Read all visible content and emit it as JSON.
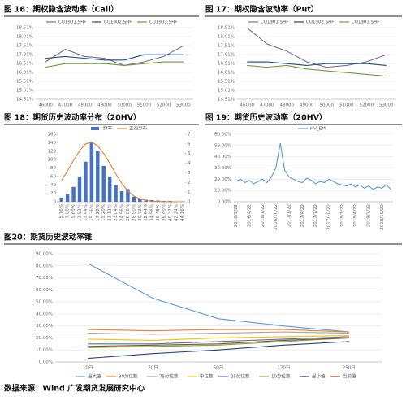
{
  "chart_data": [
    {
      "type": "line",
      "title": "图 16：期权隐含波动率（Call）",
      "categories": [
        "46000",
        "47000",
        "48000",
        "49000",
        "50000",
        "51000",
        "52000",
        "53000"
      ],
      "series": [
        {
          "name": "CU1901.SHF",
          "color": "#8064a2",
          "values": [
            16.6,
            17.3,
            16.9,
            16.8,
            16.4,
            16.6,
            16.9,
            17.5
          ]
        },
        {
          "name": "CU1902.SHF",
          "color": "#1f4e79",
          "values": [
            16.8,
            16.9,
            16.8,
            16.7,
            16.7,
            17.0,
            17.0,
            17.0
          ]
        },
        {
          "name": "CU1903.SHF",
          "color": "#6e9a3c",
          "values": [
            16.3,
            16.5,
            16.5,
            16.5,
            16.4,
            16.5,
            16.6,
            16.6
          ]
        }
      ],
      "ylim": [
        14.51,
        18.51
      ],
      "yticks": [
        {
          "value": 14.51,
          "label": "14.51%"
        },
        {
          "value": 15.01,
          "label": "15.01%"
        },
        {
          "value": 15.51,
          "label": "15.51%"
        },
        {
          "value": 16.01,
          "label": "16.01%"
        },
        {
          "value": 16.51,
          "label": "16.51%"
        },
        {
          "value": 17.01,
          "label": "17.01%"
        },
        {
          "value": 17.51,
          "label": "17.51%"
        },
        {
          "value": 18.01,
          "label": "18.01%"
        },
        {
          "value": 18.51,
          "label": "18.51%"
        }
      ],
      "grid": true,
      "legend": "top"
    },
    {
      "type": "line",
      "title": "图 17：期权隐含波动率（Put）",
      "categories": [
        "46000",
        "47000",
        "48000",
        "49000",
        "50000",
        "51000",
        "52000",
        "53000"
      ],
      "series": [
        {
          "name": "CU1901.SHF",
          "color": "#8064a2",
          "values": [
            18.5,
            17.6,
            17.2,
            16.6,
            16.3,
            16.4,
            16.6,
            17.0
          ]
        },
        {
          "name": "CU1902.SHF",
          "color": "#1f4e79",
          "values": [
            16.6,
            16.6,
            16.5,
            16.4,
            16.5,
            16.5,
            16.5,
            16.4
          ]
        },
        {
          "name": "CU1903.SHF",
          "color": "#6e9a3c",
          "values": [
            16.4,
            16.3,
            16.4,
            16.2,
            16.1,
            16.0,
            15.9,
            15.8
          ]
        }
      ],
      "ylim": [
        14.51,
        18.51
      ],
      "yticks": [
        {
          "value": 14.51,
          "label": "14.51%"
        },
        {
          "value": 15.01,
          "label": "15.01%"
        },
        {
          "value": 15.51,
          "label": "15.51%"
        },
        {
          "value": 16.01,
          "label": "16.01%"
        },
        {
          "value": 16.51,
          "label": "16.51%"
        },
        {
          "value": 17.01,
          "label": "17.01%"
        },
        {
          "value": 17.51,
          "label": "17.51%"
        },
        {
          "value": 18.01,
          "label": "18.01%"
        },
        {
          "value": 18.51,
          "label": "18.51%"
        }
      ],
      "grid": true,
      "legend": "top"
    },
    {
      "type": "bar",
      "title": "图 18：期货历史波动率分布（20HV）",
      "categories": [
        "5.76%",
        "7.68%",
        "9.60%",
        "11.52%",
        "13.44%",
        "15.36%",
        "17.28%",
        "19.20%",
        "21.12%",
        "23.04%",
        "24.96%",
        "26.88%",
        "28.80%",
        "30.72%",
        "32.64%",
        "34.56%",
        "36.48%",
        "38.40%",
        "40.32%",
        "42.24%",
        "44.16%"
      ],
      "series": [
        {
          "name": "频率",
          "color": "#4472c4",
          "values": [
            10,
            18,
            35,
            60,
            95,
            140,
            120,
            85,
            60,
            40,
            25,
            30,
            12,
            8,
            5,
            4,
            3,
            2,
            2,
            1,
            1
          ]
        },
        {
          "name": "正态分布",
          "color": "#ed7d31",
          "type": "line",
          "axis": "y2",
          "values": [
            2.2,
            3.2,
            4.3,
            5.3,
            6.0,
            6.2,
            5.8,
            5.0,
            4.0,
            2.9,
            1.9,
            1.1,
            0.6,
            0.3,
            0.15,
            0.07,
            0.03,
            0.01,
            0,
            0,
            0
          ]
        }
      ],
      "ylim": [
        0,
        160
      ],
      "yticks": [
        0,
        20,
        40,
        60,
        80,
        100,
        120,
        140,
        160
      ],
      "y2lim": [
        0,
        7
      ],
      "y2ticks": [
        0,
        1,
        2,
        3,
        4,
        5,
        6,
        7
      ],
      "grid": false,
      "legend": "top"
    },
    {
      "type": "line",
      "title": "图 19：期货历史波动率（20HV）",
      "categories": [
        "2016/1/22",
        null,
        null,
        "2016/4/22",
        null,
        null,
        "2016/7/22",
        null,
        null,
        "2016/10/22",
        null,
        null,
        "2017/1/22",
        null,
        null,
        "2017/4/22",
        null,
        null,
        "2017/7/22",
        null,
        null,
        "2017/10/22",
        null,
        null,
        "2018/1/22",
        null,
        null,
        "2018/4/22",
        null,
        null,
        "2018/7/22",
        null,
        null,
        "2018/10/22",
        null,
        null
      ],
      "series": [
        {
          "name": "HV_EM",
          "color": "#5b9bd5",
          "values": [
            18,
            20,
            17,
            19,
            16,
            18,
            20,
            17,
            22,
            30,
            52,
            28,
            22,
            20,
            18,
            17,
            21,
            19,
            16,
            18,
            17,
            20,
            18,
            16,
            15,
            14,
            16,
            13,
            15,
            12,
            14,
            11,
            13,
            12,
            15,
            11
          ]
        }
      ],
      "ylim": [
        0,
        60
      ],
      "yticks": [
        {
          "value": 0,
          "label": "0.00%"
        },
        {
          "value": 10,
          "label": "10.00%"
        },
        {
          "value": 20,
          "label": "20.00%"
        },
        {
          "value": 30,
          "label": "30.00%"
        },
        {
          "value": 40,
          "label": "40.00%"
        },
        {
          "value": 50,
          "label": "50.00%"
        },
        {
          "value": 60,
          "label": "60.00%"
        }
      ],
      "grid": true,
      "legend": "top"
    },
    {
      "type": "line",
      "title": "图20：期货历史波动率锥",
      "categories": [
        "10日",
        "20日",
        "60日",
        "120日",
        "250日"
      ],
      "series": [
        {
          "name": "最大值",
          "color": "#5b9bd5",
          "values": [
            82,
            53,
            36,
            30,
            25
          ]
        },
        {
          "name": "90分位数",
          "color": "#ed7d31",
          "values": [
            27,
            26,
            27,
            27,
            25
          ]
        },
        {
          "name": "75分位数",
          "color": "#a5a5a5",
          "values": [
            24,
            23,
            24,
            25,
            24
          ]
        },
        {
          "name": "中位数",
          "color": "#ffc000",
          "values": [
            19,
            18,
            20,
            21,
            22
          ]
        },
        {
          "name": "25分位数",
          "color": "#4472c4",
          "values": [
            15,
            15,
            17,
            19,
            21
          ]
        },
        {
          "name": "10分位数",
          "color": "#70ad47",
          "values": [
            12,
            13,
            14,
            17,
            20
          ]
        },
        {
          "name": "最小值",
          "color": "#264478",
          "values": [
            3,
            7,
            10,
            14,
            17
          ]
        },
        {
          "name": "当前值",
          "color": "#9e480e",
          "values": [
            13,
            14,
            15,
            18,
            20
          ]
        }
      ],
      "ylim": [
        0,
        90
      ],
      "yticks": [
        {
          "value": 0,
          "label": "0.00%"
        },
        {
          "value": 10,
          "label": "10.00%"
        },
        {
          "value": 20,
          "label": "20.00%"
        },
        {
          "value": 30,
          "label": "30.00%"
        },
        {
          "value": 40,
          "label": "40.00%"
        },
        {
          "value": 50,
          "label": "50.00%"
        },
        {
          "value": 60,
          "label": "60.00%"
        },
        {
          "value": 70,
          "label": "70.00%"
        },
        {
          "value": 80,
          "label": "80.00%"
        },
        {
          "value": 90,
          "label": "90.00%"
        }
      ],
      "grid": true,
      "legend": "bottom"
    }
  ],
  "source": "数据来源：Wind 广发期货发展研究中心"
}
